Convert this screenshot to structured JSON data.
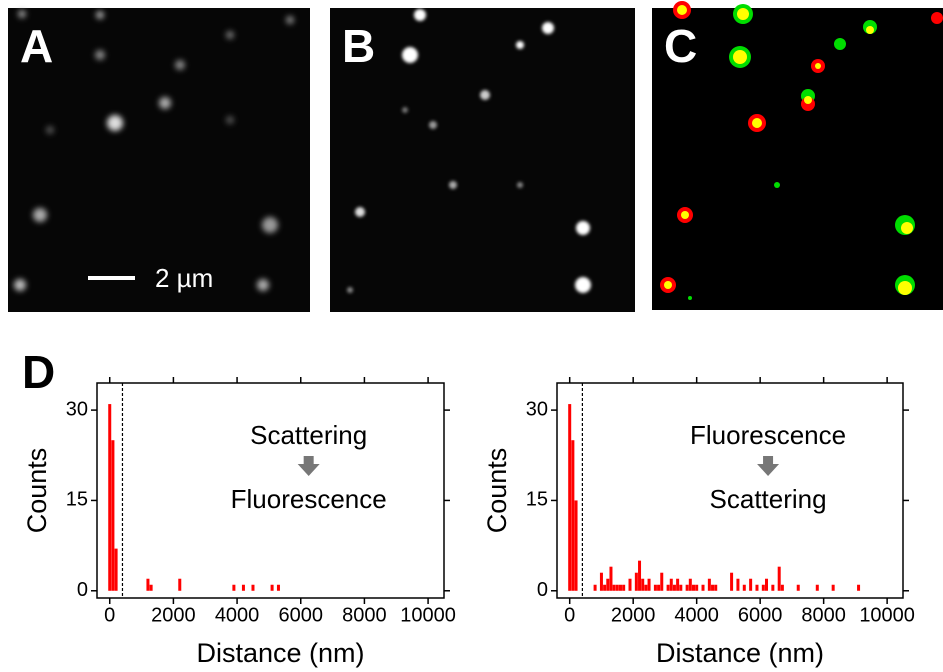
{
  "panels": {
    "a": "A",
    "b": "B",
    "c": "C",
    "d": "D",
    "scale_bar": "2 µm"
  },
  "chart_data": [
    {
      "type": "bar",
      "color": "#ff0000",
      "annotation_top": "Scattering",
      "annotation_bottom": "Fluorescence",
      "x_label": "Distance (nm)",
      "y_label": "Counts",
      "x": [
        0,
        100,
        200,
        1200,
        1300,
        2200,
        3900,
        4200,
        4500,
        5100,
        5300
      ],
      "values": [
        31,
        25,
        7,
        2,
        1,
        2,
        1,
        1,
        1,
        1,
        1
      ],
      "threshold_line": 400,
      "xlim": [
        -400,
        10500
      ],
      "ylim": [
        -1.2,
        34.5
      ],
      "xticks": [
        0,
        2000,
        4000,
        6000,
        8000,
        10000
      ],
      "yticks": [
        0,
        15,
        30
      ]
    },
    {
      "type": "bar",
      "color": "#ff0000",
      "annotation_top": "Fluorescence",
      "annotation_bottom": "Scattering",
      "x_label": "Distance (nm)",
      "y_label": "Counts",
      "x": [
        0,
        100,
        200,
        800,
        1000,
        1100,
        1200,
        1300,
        1400,
        1500,
        1600,
        1700,
        1900,
        2100,
        2200,
        2300,
        2400,
        2500,
        2700,
        2800,
        2900,
        3100,
        3200,
        3300,
        3400,
        3500,
        3700,
        3800,
        3900,
        4000,
        4200,
        4400,
        4500,
        4600,
        5100,
        5300,
        5500,
        5700,
        5900,
        6100,
        6200,
        6400,
        6600,
        6700,
        7200,
        7800,
        8300,
        9100
      ],
      "values": [
        31,
        25,
        15,
        1,
        3,
        1,
        2,
        4,
        1,
        1,
        1,
        1,
        2,
        3,
        5,
        2,
        1,
        2,
        1,
        1,
        3,
        1,
        2,
        1,
        2,
        1,
        1,
        2,
        1,
        1,
        1,
        2,
        1,
        1,
        3,
        2,
        1,
        2,
        1,
        1,
        2,
        1,
        4,
        1,
        1,
        1,
        1,
        1
      ],
      "threshold_line": 400,
      "xlim": [
        -400,
        10500
      ],
      "ylim": [
        -1.2,
        34.5
      ],
      "xticks": [
        0,
        2000,
        4000,
        6000,
        8000,
        10000
      ],
      "yticks": [
        0,
        15,
        30
      ]
    }
  ]
}
